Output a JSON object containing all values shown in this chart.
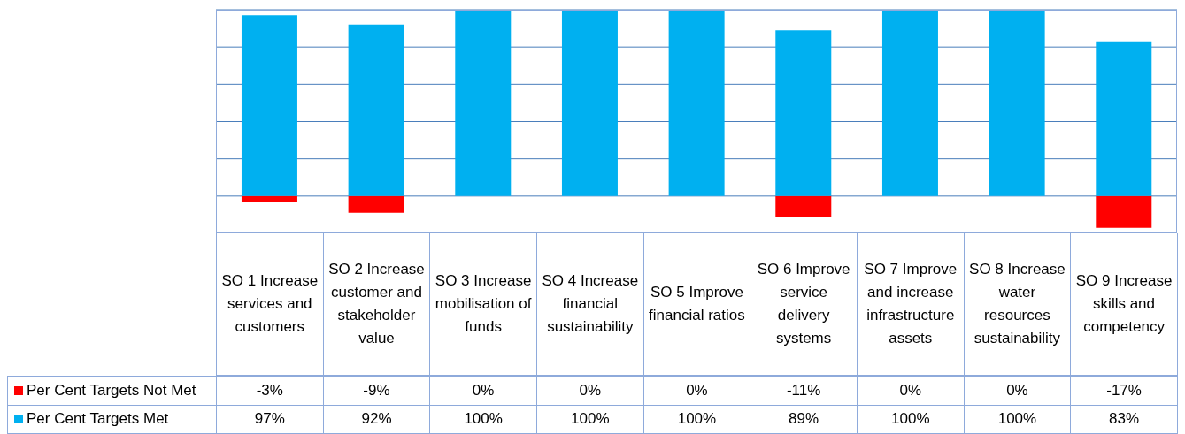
{
  "chart_data": {
    "type": "bar",
    "stacked": true,
    "categories": [
      "SO 1 Increase services and customers",
      "SO 2 Increase customer and stakeholder value",
      "SO 3 Increase mobilisation of funds",
      "SO 4 Increase financial sustainability",
      "SO 5 Improve financial ratios",
      "SO 6 Improve service delivery systems",
      "SO 7 Improve and increase infrastructure assets",
      "SO 8 Increase water resources sustainability",
      "SO 9 Increase skills and competency"
    ],
    "series": [
      {
        "name": "Per Cent Targets Not Met",
        "color": "#ff0000",
        "values": [
          -3,
          -9,
          0,
          0,
          0,
          -11,
          0,
          0,
          -17
        ],
        "value_labels": [
          "-3%",
          "-9%",
          "0%",
          "0%",
          "0%",
          "-11%",
          "0%",
          "0%",
          "-17%"
        ]
      },
      {
        "name": "Per Cent Targets Met",
        "color": "#00b0f0",
        "values": [
          97,
          92,
          100,
          100,
          100,
          89,
          100,
          100,
          83
        ],
        "value_labels": [
          "97%",
          "92%",
          "100%",
          "100%",
          "100%",
          "89%",
          "100%",
          "100%",
          "83%"
        ]
      }
    ],
    "ylim": [
      -20,
      100
    ],
    "yticks": [
      {
        "value": -20,
        "label": null
      },
      {
        "value": 0,
        "label": null
      },
      {
        "value": 20,
        "label": null
      },
      {
        "value": 40,
        "label": null
      },
      {
        "value": 60,
        "label": null
      },
      {
        "value": 80,
        "label": null
      },
      {
        "value": 100,
        "label": null
      }
    ],
    "grid": "y",
    "legend": "bottom left",
    "tick_labels": "x"
  }
}
